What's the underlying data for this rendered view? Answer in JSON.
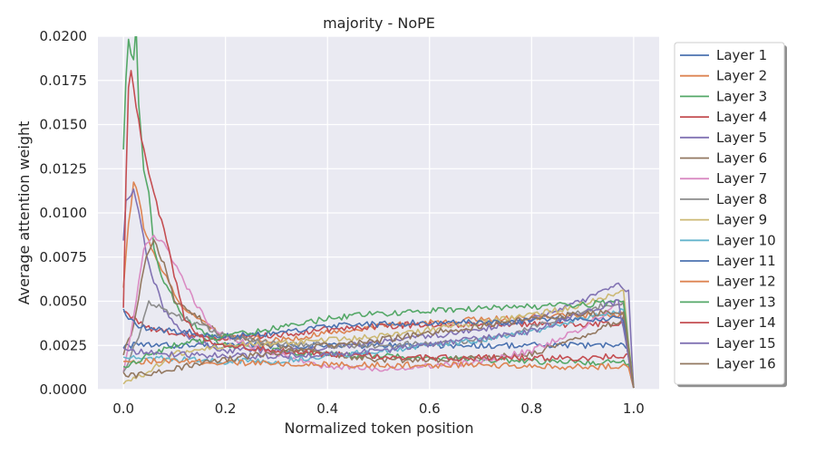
{
  "chart_data": {
    "type": "line",
    "title": "majority - NoPE",
    "xlabel": "Normalized token position",
    "ylabel": "Average attention weight",
    "xlim": [
      -0.05,
      1.05
    ],
    "ylim": [
      0.0,
      0.02
    ],
    "xticks": [
      "0.0",
      "0.2",
      "0.4",
      "0.6",
      "0.8",
      "1.0"
    ],
    "yticks": [
      "0.0000",
      "0.0025",
      "0.0050",
      "0.0075",
      "0.0100",
      "0.0125",
      "0.0150",
      "0.0175",
      "0.0200"
    ],
    "grid": true,
    "legend_position": "outside-right",
    "series": [
      {
        "name": "Layer 1",
        "color": "#4c72b0",
        "points": [
          [
            0,
            0.0025
          ],
          [
            0.05,
            0.0025
          ],
          [
            0.2,
            0.0025
          ],
          [
            0.4,
            0.0025
          ],
          [
            0.6,
            0.0025
          ],
          [
            0.8,
            0.0025
          ],
          [
            0.99,
            0.0025
          ],
          [
            1.0,
            0.0001
          ]
        ]
      },
      {
        "name": "Layer 2",
        "color": "#dd8452",
        "points": [
          [
            0,
            0.0059
          ],
          [
            0.01,
            0.0095
          ],
          [
            0.02,
            0.0116
          ],
          [
            0.03,
            0.011
          ],
          [
            0.04,
            0.009
          ],
          [
            0.06,
            0.0076
          ],
          [
            0.08,
            0.0065
          ],
          [
            0.12,
            0.0045
          ],
          [
            0.2,
            0.003
          ],
          [
            0.3,
            0.0028
          ],
          [
            0.4,
            0.0032
          ],
          [
            0.5,
            0.0036
          ],
          [
            0.6,
            0.0038
          ],
          [
            0.7,
            0.004
          ],
          [
            0.8,
            0.0041
          ],
          [
            0.9,
            0.0042
          ],
          [
            0.98,
            0.0043
          ],
          [
            1.0,
            0.0001
          ]
        ]
      },
      {
        "name": "Layer 3",
        "color": "#55a868",
        "points": [
          [
            0,
            0.0137
          ],
          [
            0.005,
            0.0175
          ],
          [
            0.01,
            0.0197
          ],
          [
            0.02,
            0.0185
          ],
          [
            0.025,
            0.0205
          ],
          [
            0.03,
            0.016
          ],
          [
            0.04,
            0.0125
          ],
          [
            0.05,
            0.011
          ],
          [
            0.06,
            0.008
          ],
          [
            0.08,
            0.006
          ],
          [
            0.12,
            0.004
          ],
          [
            0.2,
            0.0025
          ],
          [
            0.3,
            0.0022
          ],
          [
            0.4,
            0.002
          ],
          [
            0.5,
            0.0019
          ],
          [
            0.6,
            0.0018
          ],
          [
            0.8,
            0.0016
          ],
          [
            0.99,
            0.0015
          ],
          [
            1.0,
            0.0001
          ]
        ]
      },
      {
        "name": "Layer 4",
        "color": "#c44e52",
        "points": [
          [
            0,
            0.0045
          ],
          [
            0.02,
            0.004
          ],
          [
            0.05,
            0.0035
          ],
          [
            0.1,
            0.0032
          ],
          [
            0.2,
            0.0029
          ],
          [
            0.3,
            0.0031
          ],
          [
            0.4,
            0.0034
          ],
          [
            0.5,
            0.0036
          ],
          [
            0.6,
            0.0037
          ],
          [
            0.7,
            0.0037
          ],
          [
            0.8,
            0.0037
          ],
          [
            0.9,
            0.0037
          ],
          [
            0.98,
            0.0038
          ],
          [
            1.0,
            0.0001
          ]
        ]
      },
      {
        "name": "Layer 5",
        "color": "#8172b3",
        "points": [
          [
            0,
            0.0085
          ],
          [
            0.005,
            0.0108
          ],
          [
            0.02,
            0.0112
          ],
          [
            0.03,
            0.01
          ],
          [
            0.05,
            0.007
          ],
          [
            0.08,
            0.0045
          ],
          [
            0.12,
            0.003
          ],
          [
            0.2,
            0.0022
          ],
          [
            0.3,
            0.0022
          ],
          [
            0.4,
            0.0024
          ],
          [
            0.5,
            0.0027
          ],
          [
            0.6,
            0.003
          ],
          [
            0.7,
            0.0034
          ],
          [
            0.8,
            0.004
          ],
          [
            0.9,
            0.005
          ],
          [
            0.97,
            0.006
          ],
          [
            0.99,
            0.0055
          ],
          [
            1.0,
            0.0001
          ]
        ]
      },
      {
        "name": "Layer 6",
        "color": "#937860",
        "points": [
          [
            0,
            0.002
          ],
          [
            0.02,
            0.0035
          ],
          [
            0.04,
            0.007
          ],
          [
            0.06,
            0.0085
          ],
          [
            0.08,
            0.007
          ],
          [
            0.1,
            0.005
          ],
          [
            0.15,
            0.004
          ],
          [
            0.2,
            0.003
          ],
          [
            0.3,
            0.0025
          ],
          [
            0.4,
            0.002
          ],
          [
            0.5,
            0.0017
          ],
          [
            0.6,
            0.0017
          ],
          [
            0.7,
            0.0018
          ],
          [
            0.8,
            0.002
          ],
          [
            0.9,
            0.003
          ],
          [
            0.98,
            0.004
          ],
          [
            1.0,
            0.0001
          ]
        ]
      },
      {
        "name": "Layer 7",
        "color": "#da8bc3",
        "points": [
          [
            0,
            0.001
          ],
          [
            0.02,
            0.004
          ],
          [
            0.04,
            0.008
          ],
          [
            0.06,
            0.0086
          ],
          [
            0.08,
            0.0082
          ],
          [
            0.12,
            0.006
          ],
          [
            0.16,
            0.004
          ],
          [
            0.2,
            0.003
          ],
          [
            0.3,
            0.002
          ],
          [
            0.4,
            0.0013
          ],
          [
            0.5,
            0.0012
          ],
          [
            0.6,
            0.0013
          ],
          [
            0.7,
            0.0016
          ],
          [
            0.8,
            0.0022
          ],
          [
            0.9,
            0.0035
          ],
          [
            0.98,
            0.005
          ],
          [
            1.0,
            0.0001
          ]
        ]
      },
      {
        "name": "Layer 8",
        "color": "#8c8c8c",
        "points": [
          [
            0,
            0.001
          ],
          [
            0.03,
            0.003
          ],
          [
            0.05,
            0.005
          ],
          [
            0.08,
            0.0045
          ],
          [
            0.12,
            0.004
          ],
          [
            0.2,
            0.003
          ],
          [
            0.3,
            0.0026
          ],
          [
            0.4,
            0.0025
          ],
          [
            0.5,
            0.0025
          ],
          [
            0.6,
            0.0026
          ],
          [
            0.7,
            0.0028
          ],
          [
            0.8,
            0.0035
          ],
          [
            0.9,
            0.0045
          ],
          [
            0.98,
            0.005
          ],
          [
            1.0,
            0.0001
          ]
        ]
      },
      {
        "name": "Layer 9",
        "color": "#ccb974",
        "points": [
          [
            0,
            0.0003
          ],
          [
            0.05,
            0.001
          ],
          [
            0.1,
            0.002
          ],
          [
            0.2,
            0.0025
          ],
          [
            0.3,
            0.0026
          ],
          [
            0.4,
            0.0028
          ],
          [
            0.5,
            0.003
          ],
          [
            0.6,
            0.0034
          ],
          [
            0.7,
            0.0038
          ],
          [
            0.8,
            0.0042
          ],
          [
            0.9,
            0.0048
          ],
          [
            0.98,
            0.0055
          ],
          [
            1.0,
            0.0001
          ]
        ]
      },
      {
        "name": "Layer 10",
        "color": "#64b5cd",
        "points": [
          [
            0,
            0.0018
          ],
          [
            0.05,
            0.0018
          ],
          [
            0.1,
            0.0017
          ],
          [
            0.2,
            0.0016
          ],
          [
            0.3,
            0.0016
          ],
          [
            0.4,
            0.0019
          ],
          [
            0.5,
            0.0022
          ],
          [
            0.6,
            0.0025
          ],
          [
            0.7,
            0.0028
          ],
          [
            0.8,
            0.0033
          ],
          [
            0.9,
            0.004
          ],
          [
            0.98,
            0.0045
          ],
          [
            1.0,
            0.0001
          ]
        ]
      },
      {
        "name": "Layer 11",
        "color": "#4c72b0",
        "points": [
          [
            0,
            0.0045
          ],
          [
            0.02,
            0.0038
          ],
          [
            0.05,
            0.0034
          ],
          [
            0.1,
            0.0033
          ],
          [
            0.15,
            0.0032
          ],
          [
            0.2,
            0.003
          ],
          [
            0.3,
            0.0032
          ],
          [
            0.4,
            0.0036
          ],
          [
            0.5,
            0.0037
          ],
          [
            0.6,
            0.0038
          ],
          [
            0.7,
            0.0038
          ],
          [
            0.8,
            0.0039
          ],
          [
            0.9,
            0.004
          ],
          [
            0.98,
            0.004
          ],
          [
            1.0,
            0.0001
          ]
        ]
      },
      {
        "name": "Layer 12",
        "color": "#dd8452",
        "points": [
          [
            0,
            0.0015
          ],
          [
            0.05,
            0.0016
          ],
          [
            0.1,
            0.0016
          ],
          [
            0.2,
            0.0015
          ],
          [
            0.3,
            0.0015
          ],
          [
            0.4,
            0.0014
          ],
          [
            0.5,
            0.0014
          ],
          [
            0.6,
            0.0014
          ],
          [
            0.7,
            0.0014
          ],
          [
            0.8,
            0.0013
          ],
          [
            0.9,
            0.0013
          ],
          [
            0.99,
            0.0013
          ],
          [
            1.0,
            0.0001
          ]
        ]
      },
      {
        "name": "Layer 13",
        "color": "#55a868",
        "points": [
          [
            0,
            0.0012
          ],
          [
            0.05,
            0.002
          ],
          [
            0.1,
            0.0025
          ],
          [
            0.2,
            0.003
          ],
          [
            0.3,
            0.0035
          ],
          [
            0.4,
            0.004
          ],
          [
            0.5,
            0.0043
          ],
          [
            0.6,
            0.0045
          ],
          [
            0.7,
            0.0046
          ],
          [
            0.8,
            0.0047
          ],
          [
            0.9,
            0.0048
          ],
          [
            0.98,
            0.005
          ],
          [
            1.0,
            0.0001
          ]
        ]
      },
      {
        "name": "Layer 14",
        "color": "#c44e52",
        "points": [
          [
            0,
            0.0045
          ],
          [
            0.005,
            0.012
          ],
          [
            0.01,
            0.017
          ],
          [
            0.015,
            0.018
          ],
          [
            0.02,
            0.017
          ],
          [
            0.03,
            0.0152
          ],
          [
            0.04,
            0.0135
          ],
          [
            0.06,
            0.011
          ],
          [
            0.08,
            0.009
          ],
          [
            0.1,
            0.0065
          ],
          [
            0.12,
            0.004
          ],
          [
            0.15,
            0.003
          ],
          [
            0.2,
            0.0025
          ],
          [
            0.3,
            0.0022
          ],
          [
            0.4,
            0.002
          ],
          [
            0.5,
            0.0019
          ],
          [
            0.6,
            0.0018
          ],
          [
            0.7,
            0.0018
          ],
          [
            0.8,
            0.0018
          ],
          [
            0.9,
            0.0018
          ],
          [
            0.99,
            0.0019
          ],
          [
            1.0,
            0.0001
          ]
        ]
      },
      {
        "name": "Layer 15",
        "color": "#8172b3",
        "points": [
          [
            0,
            0.0022
          ],
          [
            0.05,
            0.0021
          ],
          [
            0.1,
            0.002
          ],
          [
            0.2,
            0.0019
          ],
          [
            0.3,
            0.0019
          ],
          [
            0.4,
            0.002
          ],
          [
            0.5,
            0.0022
          ],
          [
            0.6,
            0.0025
          ],
          [
            0.7,
            0.0029
          ],
          [
            0.8,
            0.0033
          ],
          [
            0.9,
            0.0043
          ],
          [
            0.97,
            0.005
          ],
          [
            1.0,
            0.0001
          ]
        ]
      },
      {
        "name": "Layer 16",
        "color": "#937860",
        "points": [
          [
            0,
            0.0008
          ],
          [
            0.05,
            0.0009
          ],
          [
            0.1,
            0.0012
          ],
          [
            0.2,
            0.0017
          ],
          [
            0.3,
            0.0021
          ],
          [
            0.4,
            0.0025
          ],
          [
            0.5,
            0.0028
          ],
          [
            0.6,
            0.0032
          ],
          [
            0.7,
            0.0036
          ],
          [
            0.8,
            0.004
          ],
          [
            0.9,
            0.0043
          ],
          [
            0.98,
            0.0044
          ],
          [
            1.0,
            0.0001
          ]
        ]
      }
    ]
  }
}
